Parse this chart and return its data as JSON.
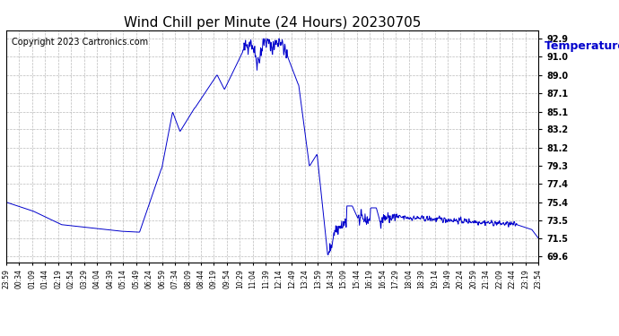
{
  "title": "Wind Chill per Minute (24 Hours) 20230705",
  "ylabel": "Temperature  (°F)",
  "copyright": "Copyright 2023 Cartronics.com",
  "line_color": "#0000cc",
  "background_color": "#ffffff",
  "grid_color": "#aaaaaa",
  "yticks": [
    69.6,
    71.5,
    73.5,
    75.4,
    77.4,
    79.3,
    81.2,
    83.2,
    85.1,
    87.1,
    89.0,
    91.0,
    92.9
  ],
  "ylim": [
    69.0,
    93.8
  ],
  "x_labels": [
    "23:59",
    "00:34",
    "01:09",
    "01:44",
    "02:19",
    "02:54",
    "03:29",
    "04:04",
    "04:39",
    "05:14",
    "05:49",
    "06:24",
    "06:59",
    "07:34",
    "08:09",
    "08:44",
    "09:19",
    "09:54",
    "10:29",
    "11:04",
    "11:39",
    "12:14",
    "12:49",
    "13:24",
    "13:59",
    "14:34",
    "15:09",
    "15:44",
    "16:19",
    "16:54",
    "17:29",
    "18:04",
    "18:39",
    "19:14",
    "19:49",
    "20:24",
    "20:59",
    "21:34",
    "22:09",
    "22:44",
    "23:19",
    "23:54"
  ],
  "ylabel_color": "#0000cc",
  "title_color": "#000000",
  "ylabel_fontsize": 9,
  "title_fontsize": 11,
  "copyright_fontsize": 7,
  "tick_fontsize": 7,
  "xtick_fontsize": 5.5
}
